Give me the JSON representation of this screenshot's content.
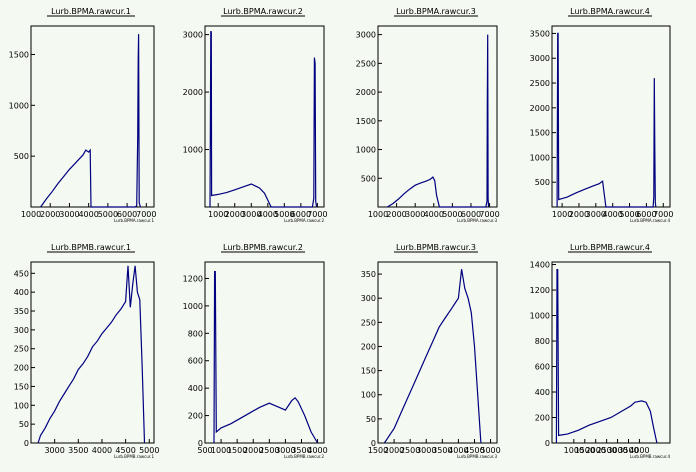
{
  "colors": {
    "background": "#f4f9f1",
    "frame": "#000000",
    "series": "#000080"
  },
  "chart_data": [
    {
      "type": "line",
      "title": "Lurb.BPMA.rawcur.1",
      "xlabel": "Lurb.BPMA.rawcur.1",
      "xlim": [
        1000,
        7400
      ],
      "ylim": [
        0,
        1780
      ],
      "xticks": [
        1000,
        2000,
        3000,
        4000,
        5000,
        6000,
        7000
      ],
      "yticks": [
        500,
        1000,
        1500
      ],
      "grid": false,
      "series": [
        {
          "x": [
            1500,
            1800,
            2100,
            2400,
            2700,
            3000,
            3300,
            3500,
            3700,
            3850,
            4000,
            4080,
            4120,
            4200,
            6400,
            6500,
            6550,
            6580,
            6600,
            6630,
            6700
          ],
          "y": [
            0,
            80,
            150,
            230,
            300,
            370,
            430,
            470,
            510,
            560,
            540,
            560,
            0,
            0,
            0,
            10,
            680,
            1450,
            1700,
            40,
            0
          ]
        }
      ]
    },
    {
      "type": "line",
      "title": "Lurb.BPMA.rawcur.2",
      "xlabel": "Lurb.BPMA.rawcur.2",
      "xlim": [
        200,
        7400
      ],
      "ylim": [
        0,
        3150
      ],
      "xticks": [
        1000,
        2000,
        3000,
        4000,
        5000,
        6000,
        7000
      ],
      "yticks": [
        1000,
        2000,
        3000
      ],
      "grid": false,
      "series": [
        {
          "x": [
            500,
            550,
            580,
            600,
            1000,
            1500,
            2000,
            2500,
            3000,
            3500,
            3800,
            4000,
            4200,
            4300,
            6700,
            6780,
            6820,
            6860,
            6900,
            6950
          ],
          "y": [
            0,
            3050,
            3050,
            200,
            220,
            250,
            300,
            350,
            400,
            330,
            240,
            120,
            0,
            0,
            0,
            150,
            2600,
            2500,
            100,
            0
          ]
        }
      ]
    },
    {
      "type": "line",
      "title": "Lurb.BPMA.rawcur.3",
      "xlabel": "Lurb.BPMA.rawcur.3",
      "xlim": [
        1000,
        7400
      ],
      "ylim": [
        0,
        3150
      ],
      "xticks": [
        1000,
        2000,
        3000,
        4000,
        5000,
        6000,
        7000
      ],
      "yticks": [
        500,
        1000,
        1500,
        2000,
        2500,
        3000
      ],
      "grid": false,
      "series": [
        {
          "x": [
            1500,
            1800,
            2100,
            2400,
            2700,
            3000,
            3300,
            3600,
            3800,
            3950,
            4050,
            4150,
            4300,
            6800,
            6860,
            6880,
            6900,
            6920,
            6950
          ],
          "y": [
            0,
            60,
            140,
            230,
            310,
            380,
            420,
            450,
            480,
            520,
            460,
            200,
            0,
            0,
            100,
            1800,
            3000,
            150,
            0
          ]
        }
      ]
    },
    {
      "type": "line",
      "title": "Lurb.BPMA.rawcur.4",
      "xlabel": "Lurb.BPMA.rawcur.4",
      "xlim": [
        400,
        7400
      ],
      "ylim": [
        0,
        3650
      ],
      "xticks": [
        1000,
        2000,
        3000,
        4000,
        5000,
        6000,
        7000
      ],
      "yticks": [
        500,
        1000,
        1500,
        2000,
        2500,
        3000,
        3500
      ],
      "grid": false,
      "series": [
        {
          "x": [
            700,
            740,
            760,
            800,
            1300,
            1800,
            2300,
            2800,
            3200,
            3400,
            3500,
            3600,
            6400,
            6440,
            6470,
            6500,
            6530,
            6560
          ],
          "y": [
            0,
            3500,
            3500,
            150,
            200,
            280,
            350,
            420,
            470,
            520,
            250,
            0,
            0,
            200,
            2600,
            1200,
            100,
            0
          ]
        }
      ]
    },
    {
      "type": "line",
      "title": "Lurb.BPMB.rawcur.1",
      "xlabel": "Lurb.BPMB.rawcur.1",
      "xlim": [
        2500,
        5100
      ],
      "ylim": [
        0,
        480
      ],
      "xticks": [
        3000,
        3500,
        4000,
        4500,
        5000
      ],
      "yticks": [
        0,
        50,
        100,
        150,
        200,
        250,
        300,
        350,
        400,
        450
      ],
      "grid": false,
      "series": [
        {
          "x": [
            2650,
            2700,
            2800,
            2900,
            3000,
            3100,
            3200,
            3300,
            3400,
            3500,
            3600,
            3700,
            3800,
            3900,
            4000,
            4100,
            4200,
            4300,
            4400,
            4500,
            4550,
            4600,
            4650,
            4700,
            4750,
            4800,
            4850,
            4900
          ],
          "y": [
            0,
            20,
            40,
            65,
            85,
            110,
            130,
            150,
            170,
            195,
            210,
            230,
            255,
            270,
            290,
            305,
            320,
            340,
            355,
            375,
            470,
            360,
            420,
            470,
            400,
            380,
            200,
            0
          ]
        }
      ]
    },
    {
      "type": "line",
      "title": "Lurb.BPMB.rawcur.2",
      "xlabel": "Lurb.BPMB.rawcur.2",
      "xlim": [
        500,
        4200
      ],
      "ylim": [
        0,
        1320
      ],
      "xticks": [
        500,
        1000,
        1500,
        2000,
        2500,
        3000,
        3500,
        4000
      ],
      "yticks": [
        0,
        200,
        400,
        600,
        800,
        1000,
        1200
      ],
      "grid": false,
      "series": [
        {
          "x": [
            780,
            800,
            820,
            850,
            1000,
            1300,
            1600,
            1900,
            2200,
            2500,
            2800,
            3000,
            3200,
            3300,
            3400,
            3600,
            3800,
            4000
          ],
          "y": [
            0,
            1250,
            1250,
            80,
            110,
            140,
            180,
            220,
            260,
            290,
            260,
            240,
            310,
            330,
            300,
            200,
            80,
            0
          ]
        }
      ]
    },
    {
      "type": "line",
      "title": "Lurb.BPMB.rawcur.3",
      "xlabel": "Lurb.BPMB.rawcur.3",
      "xlim": [
        1500,
        5200
      ],
      "ylim": [
        0,
        375
      ],
      "xticks": [
        1500,
        2000,
        2500,
        3000,
        3500,
        4000,
        4500,
        5000
      ],
      "yticks": [
        0,
        50,
        100,
        150,
        200,
        250,
        300,
        350
      ],
      "grid": false,
      "series": [
        {
          "x": [
            1700,
            1800,
            2000,
            2200,
            2400,
            2600,
            2800,
            3000,
            3200,
            3400,
            3600,
            3800,
            3900,
            4000,
            4100,
            4200,
            4300,
            4400,
            4500,
            4600,
            4700
          ],
          "y": [
            0,
            10,
            30,
            60,
            90,
            120,
            150,
            180,
            210,
            240,
            260,
            280,
            290,
            300,
            360,
            320,
            300,
            270,
            200,
            100,
            0
          ]
        }
      ]
    },
    {
      "type": "line",
      "title": "Lurb.BPMB.rawcur.4",
      "xlabel": "Lurb.BPMB.rawcur.4",
      "xlim": [
        0,
        5400
      ],
      "ylim": [
        0,
        1420
      ],
      "xticks": [
        1000,
        1500,
        2000,
        2500,
        3000,
        3500,
        4000
      ],
      "yticks": [
        0,
        200,
        400,
        600,
        800,
        1000,
        1200,
        1400
      ],
      "grid": false,
      "series": [
        {
          "x": [
            200,
            230,
            260,
            300,
            700,
            1200,
            1700,
            2200,
            2700,
            3200,
            3600,
            3800,
            4100,
            4300,
            4500,
            4650,
            4800
          ],
          "y": [
            0,
            1360,
            1360,
            60,
            70,
            100,
            140,
            170,
            200,
            250,
            290,
            320,
            330,
            320,
            250,
            120,
            0
          ]
        }
      ]
    }
  ]
}
